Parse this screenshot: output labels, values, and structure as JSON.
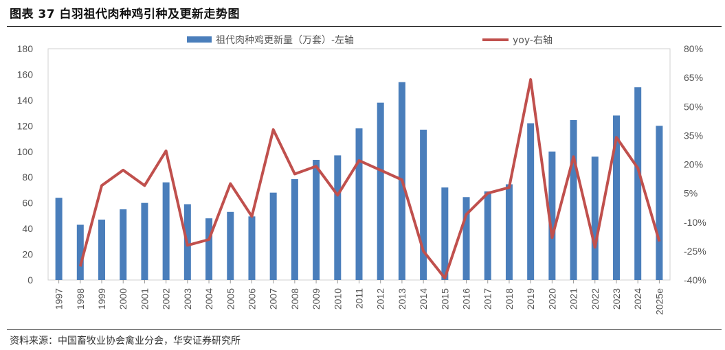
{
  "figure": {
    "title": "图表 37 白羽祖代肉种鸡引种及更新走势图",
    "source": "资料来源：中国畜牧业协会禽业分会，华安证券研究所"
  },
  "chart_data": {
    "type": "bar",
    "categories": [
      "1997",
      "1998",
      "1999",
      "2000",
      "2001",
      "2002",
      "2003",
      "2004",
      "2005",
      "2006",
      "2007",
      "2008",
      "2009",
      "2010",
      "2011",
      "2012",
      "2013",
      "2014",
      "2015",
      "2016",
      "2017",
      "2018",
      "2019",
      "2020",
      "2021",
      "2022",
      "2023",
      "2024",
      "2025e"
    ],
    "series": [
      {
        "name": "祖代肉种鸡更新量（万套）-左轴",
        "type": "bar",
        "axis": "left",
        "color": "#4a7ebb",
        "values": [
          64,
          43,
          47,
          55,
          60,
          76,
          59,
          48,
          53,
          49.5,
          68,
          78.5,
          93.5,
          97,
          118,
          138,
          154,
          117,
          72,
          64.5,
          69,
          74.5,
          122,
          100,
          124.5,
          96,
          128,
          150,
          120
        ]
      },
      {
        "name": "yoy-右轴",
        "type": "line",
        "axis": "right",
        "color": "#c0504d",
        "values": [
          null,
          -33,
          9,
          17,
          9,
          27,
          -22,
          -19,
          10,
          -7,
          38,
          15,
          19,
          4,
          22,
          17,
          12,
          -25,
          -39,
          -6,
          5,
          8,
          64,
          -18,
          24,
          -23,
          34,
          18,
          -20
        ]
      }
    ],
    "ylim_left": [
      0,
      180
    ],
    "yticks_left": [
      "0",
      "20",
      "40",
      "60",
      "80",
      "100",
      "120",
      "140",
      "160",
      "180"
    ],
    "ylim_right": [
      -40,
      80
    ],
    "yticks_right": [
      "-40%",
      "-25%",
      "-10%",
      "5%",
      "20%",
      "35%",
      "50%",
      "65%",
      "80%"
    ],
    "grid": false,
    "legend_position": "top"
  }
}
